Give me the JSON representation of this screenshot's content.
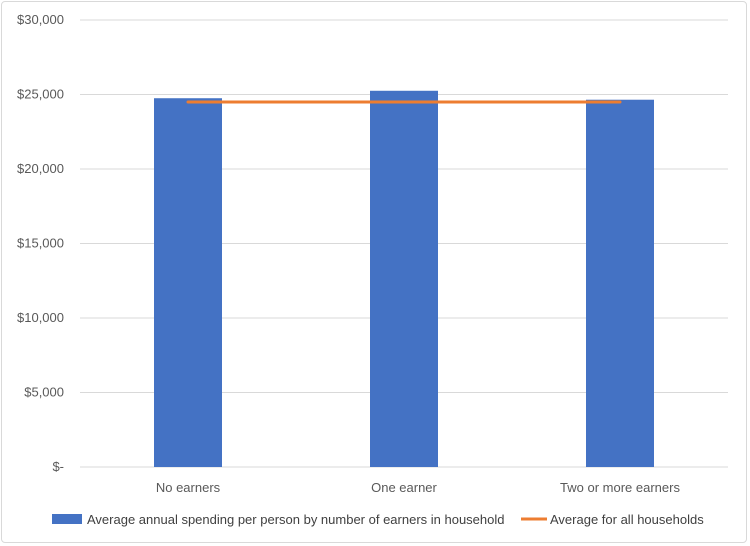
{
  "chart_data": {
    "type": "bar",
    "title": "",
    "xlabel": "",
    "ylabel": "",
    "categories": [
      "No earners",
      "One earner",
      "Two or more earners"
    ],
    "series": [
      {
        "name": "Average annual spending per person by number of earners in household",
        "type": "bar",
        "color": "#4472c4",
        "values": [
          24750,
          25250,
          24650
        ]
      },
      {
        "name": "Average for all households",
        "type": "line",
        "color": "#ed7d31",
        "values": [
          24500,
          24500,
          24500
        ]
      }
    ],
    "ylim": [
      0,
      30000
    ],
    "y_ticks": [
      0,
      5000,
      10000,
      15000,
      20000,
      25000,
      30000
    ],
    "y_tick_labels": [
      "$-",
      "$5,000",
      "$10,000",
      "$15,000",
      "$20,000",
      "$25,000",
      "$30,000"
    ],
    "grid": true,
    "legend_position": "bottom",
    "gridline_color": "#d9d9d9"
  }
}
